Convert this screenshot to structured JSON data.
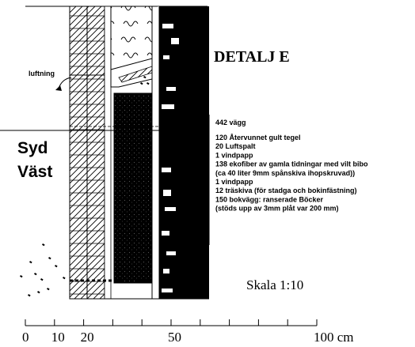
{
  "title": "DETALJ E",
  "orientation": {
    "line1": "Syd",
    "line2": "Väst"
  },
  "ventilation_label": "luftning",
  "wall_spec": {
    "heading": "442 vägg",
    "layers": [
      "120 Återvunnet gult tegel",
      "20 Luftspalt",
      "1 vindpapp",
      "138 ekofiber av gamla tidningar med vilt bibo",
      "(ca 40 liter 9mm spånskiva ihopskruvad))",
      "1 vindpapp",
      "12 träskiva (för stadga och bokinfästning)",
      "150 bokvägg: ranserade Böcker",
      "(stöds upp av 3mm plåt var 200 mm)"
    ]
  },
  "scale_text": "Skala 1:10",
  "scale_bar": {
    "tick_labels": [
      "0",
      "10",
      "20",
      "50",
      "100 cm"
    ],
    "tick_values": [
      0,
      10,
      20,
      50,
      100
    ]
  }
}
